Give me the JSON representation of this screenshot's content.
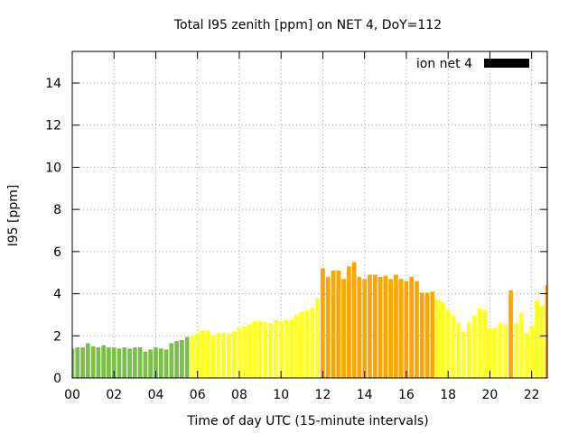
{
  "chart_data": {
    "type": "bar",
    "title": "Total I95 zenith [ppm] on NET 4, DoY=112",
    "xlabel": "Time of day UTC (15-minute intervals)",
    "ylabel": "I95 [ppm]",
    "xlim": [
      0,
      22.75
    ],
    "ylim": [
      0,
      15.5
    ],
    "xticks": [
      0,
      2,
      4,
      6,
      8,
      10,
      12,
      14,
      16,
      18,
      20,
      22
    ],
    "xtick_labels": [
      "00",
      "02",
      "04",
      "06",
      "08",
      "10",
      "12",
      "14",
      "16",
      "18",
      "20",
      "22"
    ],
    "yticks": [
      0,
      2,
      4,
      6,
      8,
      10,
      12,
      14
    ],
    "ytick_labels": [
      "0",
      "2",
      "4",
      "6",
      "8",
      "10",
      "12",
      "14"
    ],
    "grid": true,
    "legend": {
      "label": "ion net 4",
      "placement": "top-right",
      "color": "#000000"
    },
    "interval_hours": 0.25,
    "values": [
      1.4,
      1.45,
      1.45,
      1.65,
      1.5,
      1.45,
      1.55,
      1.45,
      1.45,
      1.4,
      1.45,
      1.4,
      1.45,
      1.45,
      1.25,
      1.35,
      1.45,
      1.4,
      1.35,
      1.65,
      1.75,
      1.8,
      1.95,
      2.0,
      2.15,
      2.25,
      2.25,
      2.05,
      2.15,
      2.15,
      2.1,
      2.2,
      2.4,
      2.45,
      2.55,
      2.7,
      2.7,
      2.65,
      2.6,
      2.75,
      2.7,
      2.75,
      2.8,
      3.0,
      3.15,
      3.2,
      3.35,
      3.8,
      5.2,
      4.8,
      5.1,
      5.1,
      4.7,
      5.3,
      5.5,
      4.8,
      4.7,
      4.9,
      4.9,
      4.8,
      4.85,
      4.7,
      4.9,
      4.7,
      4.6,
      4.8,
      4.6,
      4.05,
      4.05,
      4.1,
      3.75,
      3.6,
      3.25,
      2.95,
      2.65,
      2.2,
      2.6,
      2.95,
      3.3,
      3.2,
      2.35,
      2.4,
      2.6,
      2.55,
      4.15,
      2.6,
      3.1,
      2.15,
      2.45,
      3.7,
      3.45,
      4.4
    ],
    "color_key": {
      "green": "#7bbf4b",
      "yellow": "#ffff22",
      "orange": "#ffa500"
    },
    "colors": [
      "green",
      "green",
      "green",
      "green",
      "green",
      "green",
      "green",
      "green",
      "green",
      "green",
      "green",
      "green",
      "green",
      "green",
      "green",
      "green",
      "green",
      "green",
      "green",
      "green",
      "green",
      "green",
      "green",
      "yellow",
      "yellow",
      "yellow",
      "yellow",
      "yellow",
      "yellow",
      "yellow",
      "yellow",
      "yellow",
      "yellow",
      "yellow",
      "yellow",
      "yellow",
      "yellow",
      "yellow",
      "yellow",
      "yellow",
      "yellow",
      "yellow",
      "yellow",
      "yellow",
      "yellow",
      "yellow",
      "yellow",
      "yellow",
      "orange",
      "orange",
      "orange",
      "orange",
      "orange",
      "orange",
      "orange",
      "orange",
      "orange",
      "orange",
      "orange",
      "orange",
      "orange",
      "orange",
      "orange",
      "orange",
      "orange",
      "orange",
      "orange",
      "orange",
      "orange",
      "orange",
      "yellow",
      "yellow",
      "yellow",
      "yellow",
      "yellow",
      "yellow",
      "yellow",
      "yellow",
      "yellow",
      "yellow",
      "yellow",
      "yellow",
      "yellow",
      "yellow",
      "orange",
      "yellow",
      "yellow",
      "yellow",
      "yellow",
      "yellow",
      "yellow",
      "orange"
    ]
  }
}
